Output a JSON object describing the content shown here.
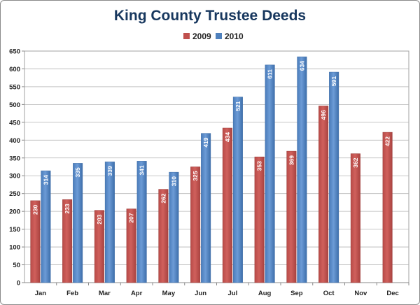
{
  "chart_data": {
    "type": "bar",
    "title": "King County Trustee Deeds",
    "categories": [
      "Jan",
      "Feb",
      "Mar",
      "Apr",
      "May",
      "Jun",
      "Jul",
      "Aug",
      "Sep",
      "Oct",
      "Nov",
      "Dec"
    ],
    "series": [
      {
        "name": "2009",
        "color": "#c0504d",
        "values": [
          230,
          233,
          203,
          207,
          262,
          325,
          434,
          353,
          369,
          496,
          362,
          422
        ]
      },
      {
        "name": "2010",
        "color": "#4f81bd",
        "values": [
          314,
          335,
          339,
          341,
          310,
          419,
          521,
          611,
          634,
          591,
          null,
          null
        ]
      }
    ],
    "ylim": [
      0,
      650
    ],
    "yticks": [
      0,
      50,
      100,
      150,
      200,
      250,
      300,
      350,
      400,
      450,
      500,
      550,
      600,
      650
    ],
    "legend": "top",
    "grid": true,
    "data_labels": true
  }
}
